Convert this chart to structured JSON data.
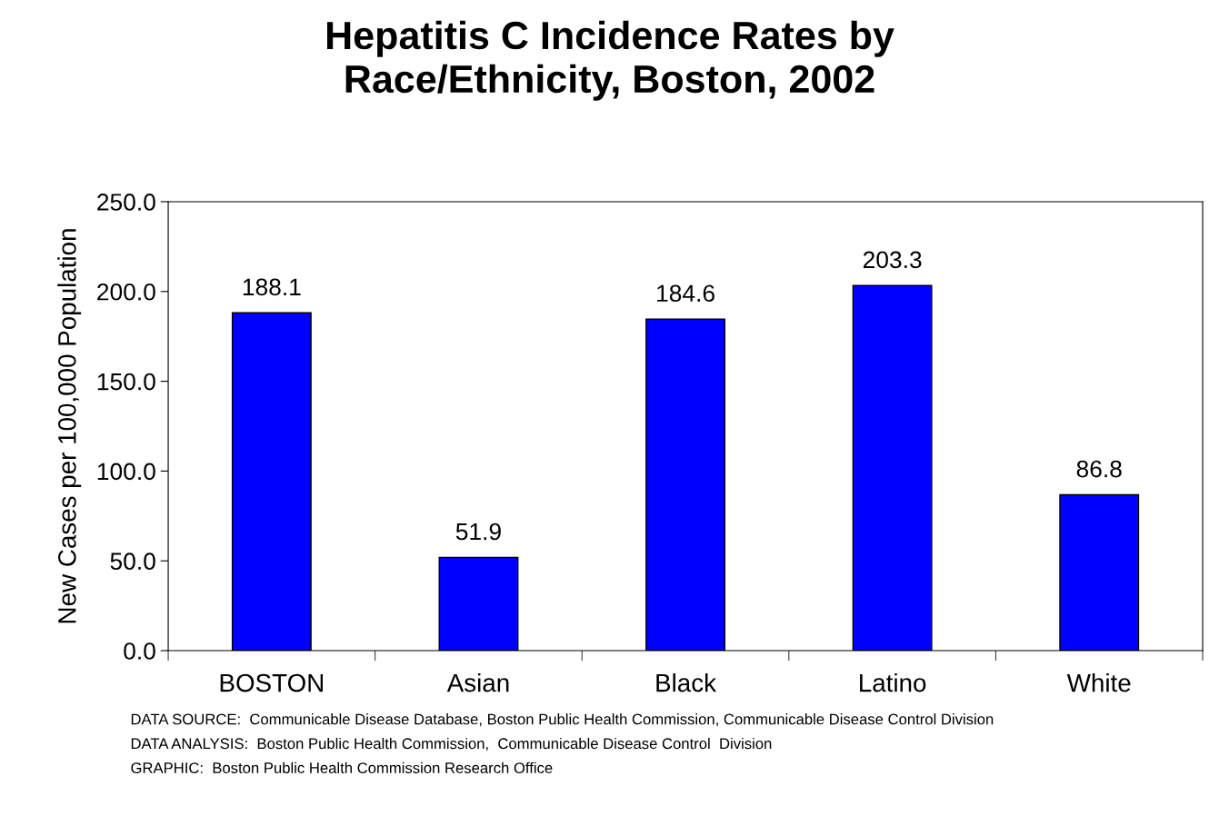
{
  "chart_data": {
    "type": "bar",
    "title": "Hepatitis C Incidence Rates by\nRace/Ethnicity, Boston, 2002",
    "ylabel": "New Cases per 100,000 Population",
    "categories": [
      "BOSTON",
      "Asian",
      "Black",
      "Latino",
      "White"
    ],
    "values": [
      188.1,
      51.9,
      184.6,
      203.3,
      86.8
    ],
    "color": "#0000ff",
    "ylim": [
      0,
      250
    ],
    "yticks": [
      {
        "value": 0,
        "label": "0.0"
      },
      {
        "value": 50,
        "label": "50.0"
      },
      {
        "value": 100,
        "label": "100.0"
      },
      {
        "value": 150,
        "label": "150.0"
      },
      {
        "value": 200,
        "label": "200.0"
      },
      {
        "value": 250,
        "label": "250.0"
      }
    ],
    "data_labels": true,
    "grid": false,
    "legend": false,
    "annotations": [
      "DATA SOURCE:  Communicable Disease Database, Boston Public Health Commission, Communicable Disease Control Division",
      "DATA ANALYSIS:  Boston Public Health Commission,  Communicable Disease Control  Division",
      "GRAPHIC:  Boston Public Health Commission Research Office"
    ]
  }
}
